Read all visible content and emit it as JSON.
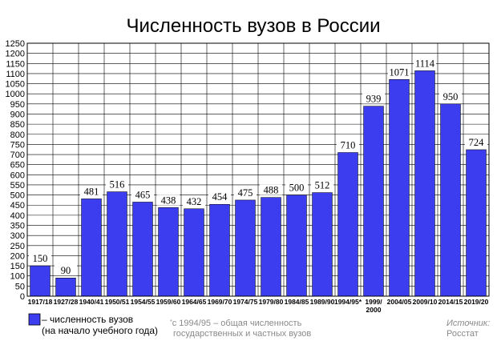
{
  "chart_data": {
    "type": "bar",
    "title": "Численность вузов в России",
    "categories": [
      "1917/18",
      "1927/28",
      "1940/41",
      "1950/51",
      "1954/55",
      "1959/60",
      "1964/65",
      "1969/70",
      "1974/75",
      "1979/80",
      "1984/85",
      "1989/90",
      "1994/95*",
      "1999/ 2000",
      "2004/05",
      "2009/10",
      "2014/15",
      "2019/20"
    ],
    "values": [
      150,
      90,
      481,
      516,
      465,
      438,
      432,
      454,
      475,
      488,
      500,
      512,
      710,
      939,
      1071,
      1114,
      950,
      724
    ],
    "ylim": [
      0,
      1250
    ],
    "ytick_step": 50,
    "grid": true,
    "legend_position": "bottom-left",
    "bar_color": "#3d3df0"
  },
  "legend": {
    "line1": "– численность вузов",
    "line2": "(на начало учебного года)"
  },
  "footnote": {
    "mark": "*",
    "line1": "с 1994/95 – общая численность",
    "line2": "государственных и частных вузов"
  },
  "source": {
    "label": "Источник:",
    "value": "Росстат"
  }
}
